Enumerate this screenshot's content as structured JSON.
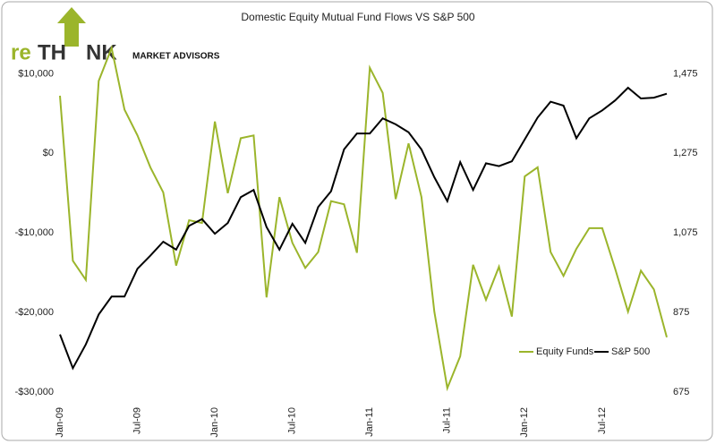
{
  "logo": {
    "parts": [
      "re",
      "TH",
      "NK"
    ],
    "tagline": "MARKET ADVISORS"
  },
  "chart_data": {
    "type": "line",
    "title": "Domestic Equity Mutual Fund Flows VS S&P 500",
    "categories": [
      "Jan-09",
      null,
      null,
      null,
      null,
      null,
      "Jul-09",
      null,
      null,
      null,
      null,
      null,
      "Jan-10",
      null,
      null,
      null,
      null,
      null,
      "Jul-10",
      null,
      null,
      null,
      null,
      null,
      "Jan-11",
      null,
      null,
      null,
      null,
      null,
      "Jul-11",
      null,
      null,
      null,
      null,
      null,
      "Jan-12",
      null,
      null,
      null,
      null,
      null,
      "Jul-12",
      null,
      null,
      null,
      null,
      null
    ],
    "series": [
      {
        "name": "Equity Funds",
        "color": "#9bb52b",
        "values": [
          7250,
          -13500,
          -15900,
          9100,
          13250,
          5500,
          2250,
          -1750,
          -4900,
          -14100,
          -8400,
          -8750,
          4000,
          -5000,
          1900,
          2250,
          -18100,
          -5500,
          -11250,
          -14400,
          -12400,
          -6000,
          -6400,
          -12500,
          10750,
          7600,
          -5750,
          1250,
          -5500,
          -19900,
          -29500,
          -25500,
          -14000,
          -18400,
          -14250,
          -20500,
          -2900,
          -1750,
          -12400,
          -15400,
          -12000,
          -9400,
          -9400,
          -14500,
          -19900,
          -14750,
          -17100,
          -23100
        ]
      },
      {
        "name": "S&P 500",
        "color": "#000000",
        "axis": "y2",
        "values": [
          820,
          735,
          795,
          870,
          915,
          915,
          985,
          1018,
          1053,
          1033,
          1093,
          1110,
          1073,
          1100,
          1165,
          1183,
          1090,
          1033,
          1098,
          1050,
          1140,
          1180,
          1285,
          1325,
          1325,
          1363,
          1348,
          1328,
          1285,
          1215,
          1155,
          1253,
          1183,
          1250,
          1243,
          1255,
          1310,
          1365,
          1405,
          1395,
          1313,
          1363,
          1383,
          1408,
          1440,
          1413,
          1415,
          1425
        ]
      }
    ],
    "ylim": [
      -30000,
      15000
    ],
    "yticks": [
      {
        "value": -30000,
        "label": "-$30,000"
      },
      {
        "value": -20000,
        "label": "-$20,000"
      },
      {
        "value": -10000,
        "label": "-$10,000"
      },
      {
        "value": 0,
        "label": "$0"
      },
      {
        "value": 10000,
        "label": "$10,000"
      }
    ],
    "y2lim": [
      675,
      1575
    ],
    "y2ticks": [
      675,
      875,
      {
        "value": 1075,
        "label": "1,075"
      },
      {
        "value": 1275,
        "label": "1,275"
      },
      {
        "value": 1475,
        "label": "1,475"
      }
    ],
    "legend": "lower right"
  }
}
